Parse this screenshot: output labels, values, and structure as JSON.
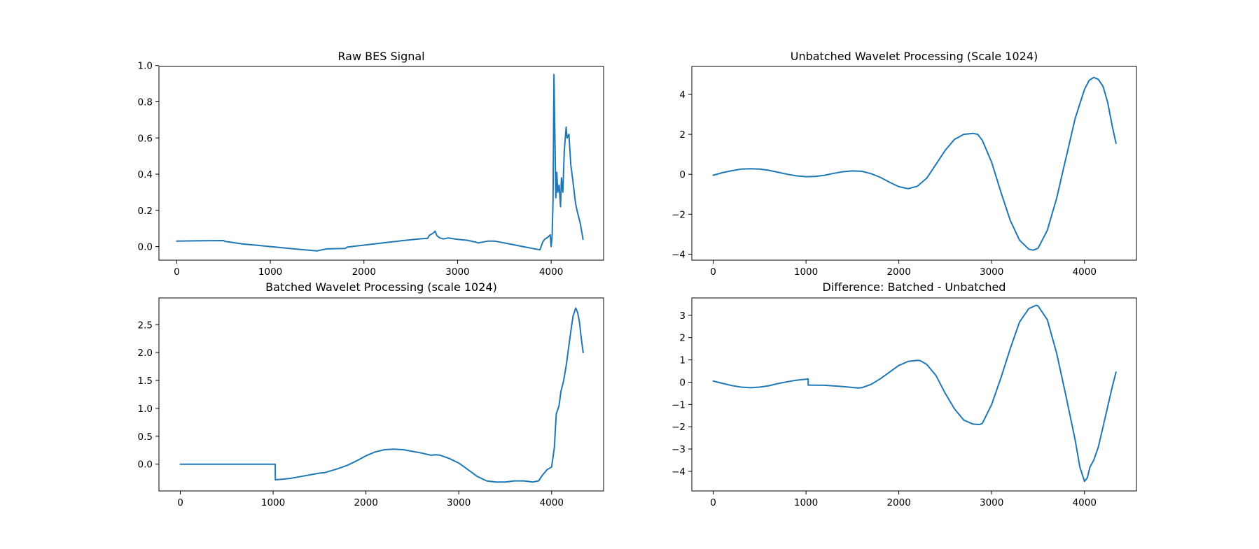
{
  "figure": {
    "grid": false,
    "series_color": "#1f77b4"
  },
  "chart_data": [
    {
      "type": "line",
      "title": "Raw BES Signal",
      "xlabel": "",
      "ylabel": "",
      "xlim": [
        -190,
        4560
      ],
      "ylim": [
        -0.075,
        0.995
      ],
      "xticks": [
        0,
        1000,
        2000,
        3000,
        4000
      ],
      "yticks": [
        0.0,
        0.2,
        0.4,
        0.6,
        0.8,
        1.0
      ],
      "ytick_labels": [
        "0.0",
        "0.2",
        "0.4",
        "0.6",
        "0.8",
        "1.0"
      ],
      "series": [
        {
          "x": [
            0,
            250,
            500,
            520,
            700,
            900,
            1100,
            1300,
            1500,
            1530,
            1600,
            1800,
            1820,
            2000,
            2200,
            2400,
            2600,
            2680,
            2700,
            2740,
            2760,
            2780,
            2810,
            2850,
            2900,
            3000,
            3100,
            3200,
            3220,
            3300,
            3320,
            3400,
            3600,
            3700,
            3800,
            3880,
            3910,
            3930,
            3960,
            3990,
            4000,
            4010,
            4020,
            4030,
            4040,
            4050,
            4060,
            4070,
            4085,
            4100,
            4110,
            4125,
            4140,
            4160,
            4170,
            4190,
            4210,
            4230,
            4260,
            4280,
            4310,
            4340
          ],
          "y": [
            0.03,
            0.032,
            0.033,
            0.028,
            0.015,
            0.005,
            -0.005,
            -0.015,
            -0.024,
            -0.02,
            -0.013,
            -0.01,
            -0.003,
            0.008,
            0.02,
            0.032,
            0.043,
            0.046,
            0.062,
            0.075,
            0.085,
            0.06,
            0.048,
            0.042,
            0.048,
            0.04,
            0.035,
            0.024,
            0.02,
            0.028,
            0.03,
            0.03,
            0.01,
            0.0,
            -0.01,
            -0.018,
            0.025,
            0.04,
            0.05,
            0.065,
            0.0,
            0.06,
            0.25,
            0.95,
            0.6,
            0.27,
            0.41,
            0.3,
            0.34,
            0.22,
            0.38,
            0.3,
            0.53,
            0.66,
            0.6,
            0.62,
            0.45,
            0.37,
            0.24,
            0.19,
            0.13,
            0.04
          ]
        }
      ]
    },
    {
      "type": "line",
      "title": "Unbatched Wavelet Processing (Scale 1024)",
      "xlabel": "",
      "ylabel": "",
      "xlim": [
        -230,
        4560
      ],
      "ylim": [
        -4.3,
        5.4
      ],
      "xticks": [
        0,
        1000,
        2000,
        3000,
        4000
      ],
      "yticks": [
        -4,
        -2,
        0,
        2,
        4
      ],
      "ytick_labels": [
        "−4",
        "−2",
        "0",
        "2",
        "4"
      ],
      "series": [
        {
          "x": [
            0,
            100,
            200,
            300,
            400,
            500,
            600,
            700,
            800,
            900,
            1000,
            1100,
            1200,
            1300,
            1400,
            1500,
            1600,
            1700,
            1800,
            1900,
            2000,
            2100,
            2200,
            2300,
            2400,
            2500,
            2600,
            2700,
            2800,
            2850,
            2900,
            3000,
            3100,
            3200,
            3300,
            3400,
            3450,
            3500,
            3600,
            3700,
            3800,
            3900,
            4000,
            4050,
            4100,
            4150,
            4200,
            4250,
            4300,
            4340
          ],
          "y": [
            -0.05,
            0.08,
            0.18,
            0.26,
            0.28,
            0.26,
            0.2,
            0.1,
            0.0,
            -0.08,
            -0.12,
            -0.11,
            -0.05,
            0.05,
            0.13,
            0.17,
            0.15,
            0.03,
            -0.15,
            -0.4,
            -0.62,
            -0.72,
            -0.6,
            -0.2,
            0.5,
            1.2,
            1.75,
            2.0,
            2.05,
            2.0,
            1.7,
            0.6,
            -0.9,
            -2.3,
            -3.3,
            -3.75,
            -3.8,
            -3.7,
            -2.8,
            -1.2,
            0.8,
            2.8,
            4.25,
            4.7,
            4.85,
            4.75,
            4.4,
            3.6,
            2.4,
            1.55
          ]
        }
      ]
    },
    {
      "type": "line",
      "title": "Batched Wavelet Processing (scale 1024)",
      "xlabel": "",
      "ylabel": "",
      "xlim": [
        -230,
        4560
      ],
      "ylim": [
        -0.48,
        2.98
      ],
      "xticks": [
        0,
        1000,
        2000,
        3000,
        4000
      ],
      "yticks": [
        0.0,
        0.5,
        1.0,
        1.5,
        2.0,
        2.5
      ],
      "ytick_labels": [
        "0.0",
        "0.5",
        "1.0",
        "1.5",
        "2.0",
        "2.5"
      ],
      "series": [
        {
          "x": [
            0,
            500,
            1023,
            1024,
            1100,
            1200,
            1300,
            1400,
            1500,
            1560,
            1600,
            1700,
            1800,
            1900,
            2000,
            2100,
            2200,
            2300,
            2400,
            2500,
            2600,
            2700,
            2750,
            2800,
            2900,
            3000,
            3100,
            3200,
            3300,
            3400,
            3500,
            3600,
            3700,
            3800,
            3860,
            3900,
            3950,
            4000,
            4030,
            4050,
            4080,
            4100,
            4130,
            4160,
            4200,
            4230,
            4260,
            4280,
            4300,
            4320,
            4340
          ],
          "y": [
            0.0,
            0.0,
            0.0,
            -0.28,
            -0.27,
            -0.25,
            -0.22,
            -0.19,
            -0.16,
            -0.15,
            -0.13,
            -0.08,
            -0.02,
            0.06,
            0.15,
            0.22,
            0.26,
            0.27,
            0.26,
            0.23,
            0.2,
            0.16,
            0.17,
            0.16,
            0.1,
            0.02,
            -0.1,
            -0.22,
            -0.3,
            -0.32,
            -0.32,
            -0.3,
            -0.3,
            -0.32,
            -0.3,
            -0.2,
            -0.1,
            -0.05,
            0.3,
            0.9,
            1.05,
            1.3,
            1.5,
            1.8,
            2.3,
            2.65,
            2.8,
            2.72,
            2.55,
            2.25,
            2.0
          ]
        }
      ]
    },
    {
      "type": "line",
      "title": "Difference: Batched - Unbatched",
      "xlabel": "",
      "ylabel": "",
      "xlim": [
        -230,
        4560
      ],
      "ylim": [
        -4.88,
        3.78
      ],
      "xticks": [
        0,
        1000,
        2000,
        3000,
        4000
      ],
      "yticks": [
        -4,
        -3,
        -2,
        -1,
        0,
        1,
        2,
        3
      ],
      "ytick_labels": [
        "−4",
        "−3",
        "−2",
        "−1",
        "0",
        "1",
        "2",
        "3"
      ],
      "series": [
        {
          "x": [
            0,
            100,
            200,
            300,
            400,
            500,
            600,
            700,
            800,
            900,
            1000,
            1023,
            1024,
            1200,
            1400,
            1560,
            1600,
            1700,
            1800,
            1900,
            2000,
            2100,
            2200,
            2230,
            2300,
            2400,
            2500,
            2600,
            2700,
            2800,
            2870,
            2900,
            3000,
            3100,
            3200,
            3300,
            3400,
            3480,
            3500,
            3600,
            3700,
            3800,
            3900,
            3950,
            4000,
            4030,
            4060,
            4100,
            4150,
            4200,
            4250,
            4300,
            4340
          ],
          "y": [
            0.05,
            -0.05,
            -0.15,
            -0.22,
            -0.25,
            -0.22,
            -0.16,
            -0.06,
            0.02,
            0.09,
            0.13,
            0.15,
            -0.13,
            -0.14,
            -0.2,
            -0.26,
            -0.25,
            -0.1,
            0.15,
            0.45,
            0.75,
            0.93,
            0.98,
            0.97,
            0.8,
            0.3,
            -0.5,
            -1.2,
            -1.7,
            -1.88,
            -1.9,
            -1.85,
            -1.0,
            0.2,
            1.5,
            2.7,
            3.3,
            3.45,
            3.42,
            2.8,
            1.3,
            -0.6,
            -2.6,
            -3.8,
            -4.45,
            -4.3,
            -3.8,
            -3.5,
            -2.9,
            -2.0,
            -1.1,
            -0.2,
            0.45
          ]
        }
      ]
    }
  ]
}
